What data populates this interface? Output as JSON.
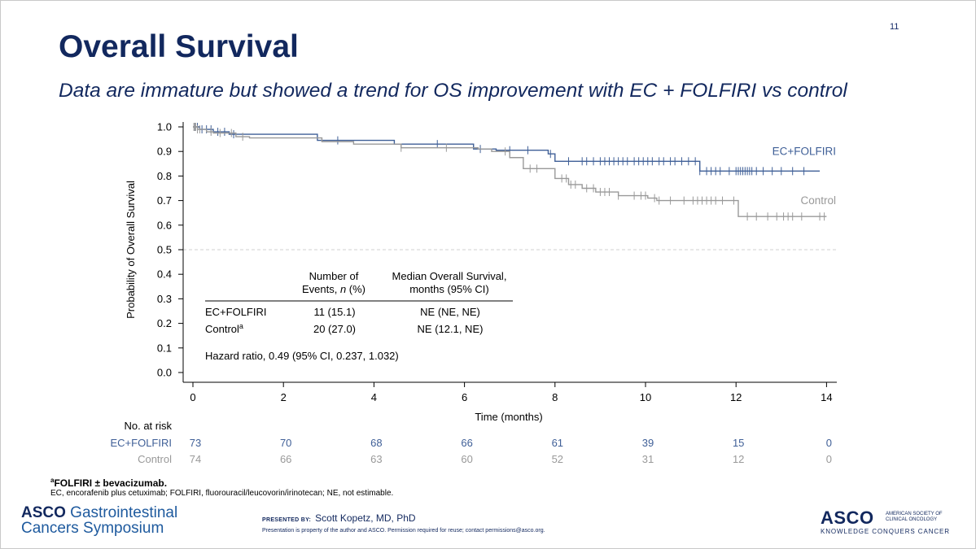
{
  "slide": {
    "number": "11",
    "title": "Overall Survival",
    "subtitle": "Data are immature but showed a trend for OS improvement with EC + FOLFIRI vs control"
  },
  "chart_data": {
    "type": "line",
    "title": "Overall Survival",
    "xlabel": "Time (months)",
    "ylabel": "Probability of Overall Survival",
    "xlim": [
      0,
      14
    ],
    "ylim": [
      0,
      1
    ],
    "xticks": [
      0,
      2,
      4,
      6,
      8,
      10,
      12,
      14
    ],
    "yticks": [
      0.0,
      0.1,
      0.2,
      0.3,
      0.4,
      0.5,
      0.6,
      0.7,
      0.8,
      0.9,
      1.0
    ],
    "ytick_labels": [
      "0.0",
      "0.1",
      "0.2",
      "0.3",
      "0.4",
      "0.5",
      "0.6",
      "0.7",
      "0.8",
      "0.9",
      "1.0"
    ],
    "reference_line": 0.5,
    "series": [
      {
        "name": "EC+FOLFIRI",
        "color": "#3f5f97",
        "steps": [
          [
            0,
            1.0
          ],
          [
            0.15,
            0.99
          ],
          [
            0.45,
            0.98
          ],
          [
            0.8,
            0.97
          ],
          [
            2.75,
            0.945
          ],
          [
            4.45,
            0.93
          ],
          [
            6.2,
            0.91
          ],
          [
            6.7,
            0.905
          ],
          [
            7.85,
            0.89
          ],
          [
            8.0,
            0.86
          ],
          [
            11.2,
            0.82
          ],
          [
            13.85,
            0.82
          ]
        ],
        "censors": [
          0.05,
          0.1,
          0.2,
          0.3,
          0.4,
          0.55,
          0.7,
          0.9,
          3.2,
          5.4,
          6.35,
          7.0,
          7.4,
          7.9,
          8.3,
          8.6,
          8.7,
          8.85,
          9.0,
          9.1,
          9.2,
          9.3,
          9.4,
          9.5,
          9.6,
          9.75,
          9.85,
          9.95,
          10.05,
          10.15,
          10.3,
          10.4,
          10.55,
          10.65,
          10.8,
          10.95,
          11.1,
          11.2,
          11.35,
          11.45,
          11.55,
          11.65,
          11.85,
          12.0,
          12.05,
          12.1,
          12.15,
          12.2,
          12.25,
          12.3,
          12.35,
          12.45,
          12.6,
          12.8,
          13.0,
          13.25,
          13.5
        ]
      },
      {
        "name": "Control",
        "color": "#999999",
        "steps": [
          [
            0,
            1.0
          ],
          [
            0.1,
            0.99
          ],
          [
            0.3,
            0.98
          ],
          [
            0.45,
            0.975
          ],
          [
            0.95,
            0.96
          ],
          [
            1.25,
            0.955
          ],
          [
            2.85,
            0.94
          ],
          [
            3.55,
            0.93
          ],
          [
            4.6,
            0.915
          ],
          [
            6.3,
            0.91
          ],
          [
            6.6,
            0.9
          ],
          [
            7.0,
            0.875
          ],
          [
            7.3,
            0.83
          ],
          [
            8.0,
            0.79
          ],
          [
            8.3,
            0.765
          ],
          [
            8.6,
            0.75
          ],
          [
            8.9,
            0.735
          ],
          [
            9.4,
            0.72
          ],
          [
            10.05,
            0.71
          ],
          [
            10.25,
            0.7
          ],
          [
            12.05,
            0.635
          ],
          [
            14.0,
            0.635
          ]
        ],
        "censors": [
          0.02,
          0.04,
          0.06,
          0.1,
          0.15,
          0.4,
          0.6,
          0.85,
          1.1,
          4.6,
          5.6,
          6.9,
          7.45,
          7.6,
          8.15,
          8.25,
          8.35,
          8.45,
          8.7,
          8.85,
          9.0,
          9.1,
          9.2,
          9.4,
          9.75,
          9.9,
          10.0,
          10.2,
          10.3,
          10.55,
          10.85,
          11.05,
          11.15,
          11.25,
          11.35,
          11.45,
          11.55,
          11.7,
          11.95,
          12.25,
          12.45,
          12.7,
          12.9,
          13.05,
          13.15,
          13.25,
          13.45,
          13.85,
          13.95
        ]
      }
    ],
    "inset_table": {
      "headers": [
        "Number  of\nEvents, n (%)",
        "Median Overall Survival,\nmonths (95% CI)"
      ],
      "rows": [
        {
          "arm": "EC+FOLFIRI",
          "arm_sup": "",
          "events": "11 (15.1)",
          "median": "NE (NE, NE)"
        },
        {
          "arm": "Control",
          "arm_sup": "a",
          "events": "20 (27.0)",
          "median": "NE (12.1, NE)"
        }
      ],
      "hazard_ratio": "Hazard ratio, 0.49 (95% CI, 0.237, 1.032)"
    },
    "at_risk": {
      "title": "No. at risk",
      "times": [
        0,
        2,
        4,
        6,
        8,
        10,
        12,
        14
      ],
      "rows": [
        {
          "name": "EC+FOLFIRI",
          "color": "#3f5f97",
          "values": [
            "73",
            "70",
            "68",
            "66",
            "61",
            "39",
            "15",
            "0"
          ]
        },
        {
          "name": "Control",
          "color": "#999999",
          "values": [
            "74",
            "66",
            "63",
            "60",
            "52",
            "31",
            "12",
            "0"
          ]
        }
      ]
    }
  },
  "footnotes": {
    "note_sup": "a",
    "note": "FOLFIRI ± bevacizumab.",
    "abbreviations": "EC, encorafenib plus cetuximab; FOLFIRI, fluorouracil/leucovorin/irinotecan; NE, not estimable."
  },
  "branding": {
    "left_bold": "ASCO",
    "left_rest": " Gastrointestinal",
    "left_line2": "Cancers Symposium",
    "presented_by_label": "PRESENTED BY:",
    "presenter": "Scott Kopetz, MD, PhD",
    "property_note": "Presentation is property of the author and ASCO. Permission required for reuse; contact permissions@asco.org.",
    "right_logo": "ASCO",
    "right_society": "AMERICAN SOCIETY OF CLINICAL ONCOLOGY",
    "right_tagline": "KNOWLEDGE CONQUERS CANCER"
  }
}
